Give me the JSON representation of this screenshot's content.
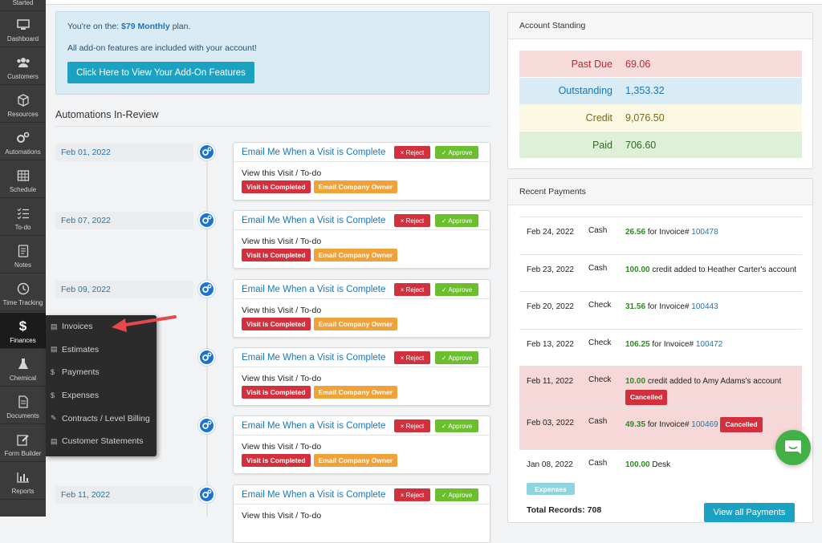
{
  "sidebar": {
    "items": [
      {
        "label": "Started",
        "icon": "started-icon"
      },
      {
        "label": "Dashboard",
        "icon": "dashboard-icon"
      },
      {
        "label": "Customers",
        "icon": "customers-icon"
      },
      {
        "label": "Resources",
        "icon": "resources-icon"
      },
      {
        "label": "Automations",
        "icon": "automations-icon"
      },
      {
        "label": "Schedule",
        "icon": "schedule-icon"
      },
      {
        "label": "To-do",
        "icon": "todo-icon"
      },
      {
        "label": "Notes",
        "icon": "notes-icon"
      },
      {
        "label": "Time Tracking",
        "icon": "clock-icon"
      },
      {
        "label": "Finances",
        "icon": "dollar-icon"
      },
      {
        "label": "Chemical",
        "icon": "flask-icon"
      },
      {
        "label": "Documents",
        "icon": "document-icon"
      },
      {
        "label": "Form Builder",
        "icon": "form-builder-icon"
      },
      {
        "label": "Reports",
        "icon": "reports-icon"
      }
    ],
    "active": "Finances"
  },
  "finances_menu": {
    "items": [
      {
        "label": "Invoices",
        "icon": "file-icon"
      },
      {
        "label": "Estimates",
        "icon": "file-icon"
      },
      {
        "label": "Payments",
        "icon": "dollar-icon"
      },
      {
        "label": "Expenses",
        "icon": "dollar-icon"
      },
      {
        "label": "Contracts / Level Billing",
        "icon": "contract-icon"
      },
      {
        "label": "Customer Statements",
        "icon": "file-icon"
      }
    ]
  },
  "plan": {
    "prefix": "You're on the:",
    "plan_name": "$79 Monthly",
    "suffix": "plan.",
    "addon_text": "All add-on features are included with your account!",
    "button": "Click Here to View Your Add-On Features"
  },
  "automations": {
    "title": "Automations In-Review",
    "reject_label": "× Reject",
    "approve_label": "✓ Approve",
    "items": [
      {
        "date": "Feb 01, 2022",
        "title": "Email Me When a Visit is Complete",
        "body": "View this Visit / To-do",
        "tag1": "Visit is Completed",
        "tag2": "Email Company Owner"
      },
      {
        "date": "Feb 07, 2022",
        "title": "Email Me When a Visit is Complete",
        "body": "View this Visit / To-do",
        "tag1": "Visit is Completed",
        "tag2": "Email Company Owner"
      },
      {
        "date": "Feb 09, 2022",
        "title": "Email Me When a Visit is Complete",
        "body": "View this Visit / To-do",
        "tag1": "Visit is Completed",
        "tag2": "Email Company Owner"
      },
      {
        "date": "",
        "title": "Email Me When a Visit is Complete",
        "body": "View this Visit / To-do",
        "tag1": "Visit is Completed",
        "tag2": "Email Company Owner"
      },
      {
        "date": "",
        "title": "Email Me When a Visit is Complete",
        "body": "View this Visit / To-do",
        "tag1": "Visit is Completed",
        "tag2": "Email Company Owner"
      },
      {
        "date": "Feb 11, 2022",
        "title": "Email Me When a Visit is Complete",
        "body": "View this Visit / To-do",
        "tag1": "",
        "tag2": ""
      }
    ]
  },
  "account_standing": {
    "title": "Account Standing",
    "rows": [
      {
        "label": "Past Due",
        "value": "69.06",
        "bg": "#f8dcdc",
        "color": "#c0262d"
      },
      {
        "label": "Outstanding",
        "value": "1,353.32",
        "bg": "#d9ecf6",
        "color": "#1b76b7"
      },
      {
        "label": "Credit",
        "value": "9,076.50",
        "bg": "#fbf8e3",
        "color": "#7a6a1c"
      },
      {
        "label": "Paid",
        "value": "706.60",
        "bg": "#dff0d8",
        "color": "#2f6b22"
      }
    ]
  },
  "recent_payments": {
    "title": "Recent Payments",
    "rows": [
      {
        "date": "Feb 24, 2022",
        "method": "Cash",
        "amount": "26.56",
        "text": "for Invoice#",
        "link": "100478",
        "status": ""
      },
      {
        "date": "Feb 23, 2022",
        "method": "Cash",
        "amount": "100.00",
        "text": "credit added to Heather Carter's account",
        "link": "",
        "status": ""
      },
      {
        "date": "Feb 20, 2022",
        "method": "Check",
        "amount": "31.56",
        "text": "for Invoice#",
        "link": "100443",
        "status": ""
      },
      {
        "date": "Feb 13, 2022",
        "method": "Check",
        "amount": "106.25",
        "text": "for Invoice#",
        "link": "100472",
        "status": ""
      },
      {
        "date": "Feb 11, 2022",
        "method": "Check",
        "amount": "10.00",
        "text": "credit added to Amy Adams's account",
        "link": "",
        "status": "Cancelled"
      },
      {
        "date": "Feb 03, 2022",
        "method": "Cash",
        "amount": "49.35",
        "text": "for Invoice#",
        "link": "100469",
        "status": "Cancelled"
      },
      {
        "date": "Jan 08, 2022",
        "method": "Cash",
        "amount": "100.00",
        "text": "Desk",
        "link": "",
        "status": "",
        "badge": "Expenses"
      }
    ],
    "total": "Total Records: 708",
    "view_all": "View all Payments"
  },
  "colors": {
    "accent": "#1ba2c2",
    "link": "#1b76b7",
    "danger": "#d3303e",
    "success": "#6bbf2e",
    "warning": "#f0a13a",
    "chat": "#43b046"
  }
}
